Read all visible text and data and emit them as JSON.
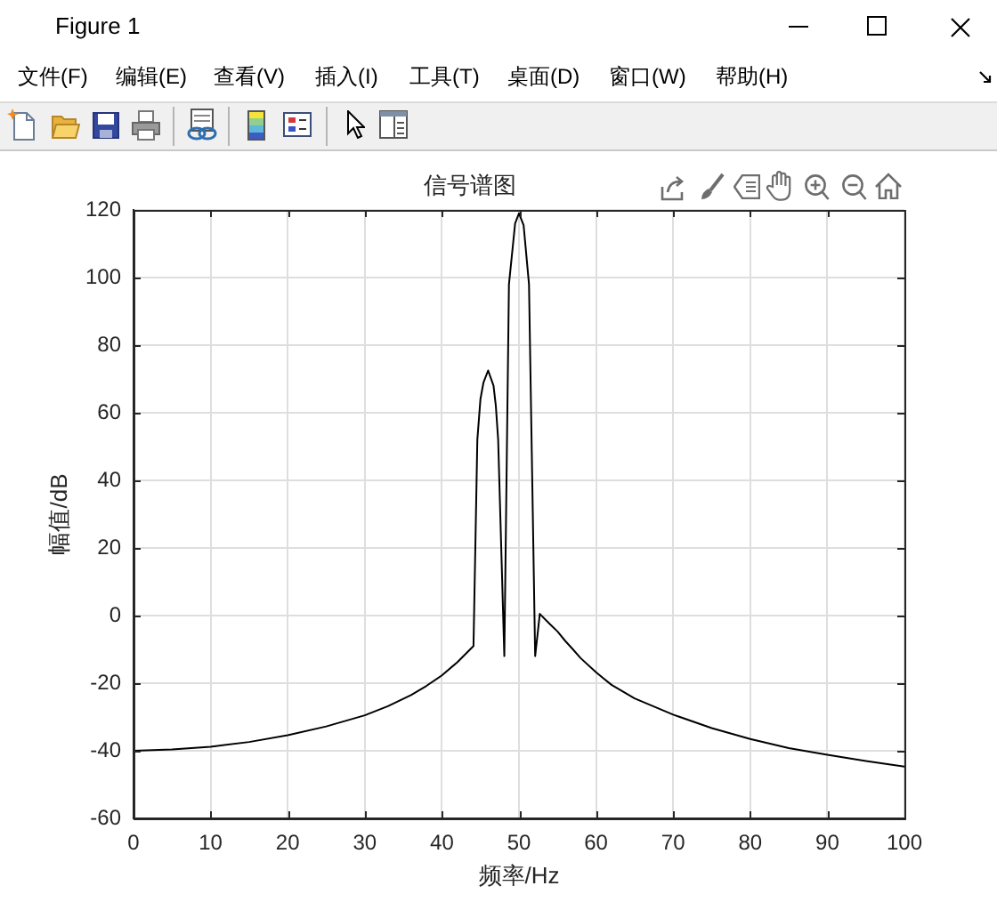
{
  "chart_data": {
    "type": "line",
    "title": "信号谱图",
    "xlabel": "频率/Hz",
    "ylabel": "幅值/dB",
    "annotations": [
      "Figure 1",
      "文件(F)",
      "编辑(E)",
      "查看(V)",
      "插入(I)",
      "工具(T)",
      "桌面(D)",
      "窗口(W)",
      "帮助(H)"
    ],
    "x": [
      0,
      5,
      10,
      15,
      20,
      25,
      30,
      33,
      36,
      38,
      40,
      42,
      44.1,
      44.6,
      45,
      45.4,
      46,
      46.7,
      47,
      47.3,
      48.1,
      48.7,
      49.5,
      50,
      50.6,
      51.3,
      52.1,
      52.7,
      54,
      55,
      56,
      57,
      58,
      60,
      62,
      65,
      70,
      75,
      80,
      85,
      90,
      95,
      100
    ],
    "series": [
      {
        "color": "#000000",
        "values": [
          -40,
          -39.6,
          -38.8,
          -37.4,
          -35.4,
          -32.8,
          -29.5,
          -26.8,
          -23.5,
          -20.8,
          -17.7,
          -13.8,
          -9,
          52,
          64,
          69,
          72.5,
          68,
          62,
          52,
          -12,
          98,
          116,
          119,
          115.5,
          98,
          -12,
          0.5,
          -2.5,
          -4.7,
          -7.5,
          -10,
          -12.6,
          -16.8,
          -20.5,
          -24.5,
          -29.3,
          -33.3,
          -36.5,
          -39.2,
          -41.2,
          -43,
          -44.7
        ]
      }
    ],
    "xlim": [
      0,
      100
    ],
    "ylim": [
      -60,
      120
    ],
    "xticks": [
      0,
      10,
      20,
      30,
      40,
      50,
      60,
      70,
      80,
      90,
      100
    ],
    "yticks": [
      -60,
      -40,
      -20,
      0,
      20,
      40,
      60,
      80,
      100,
      120
    ],
    "grid": true
  }
}
